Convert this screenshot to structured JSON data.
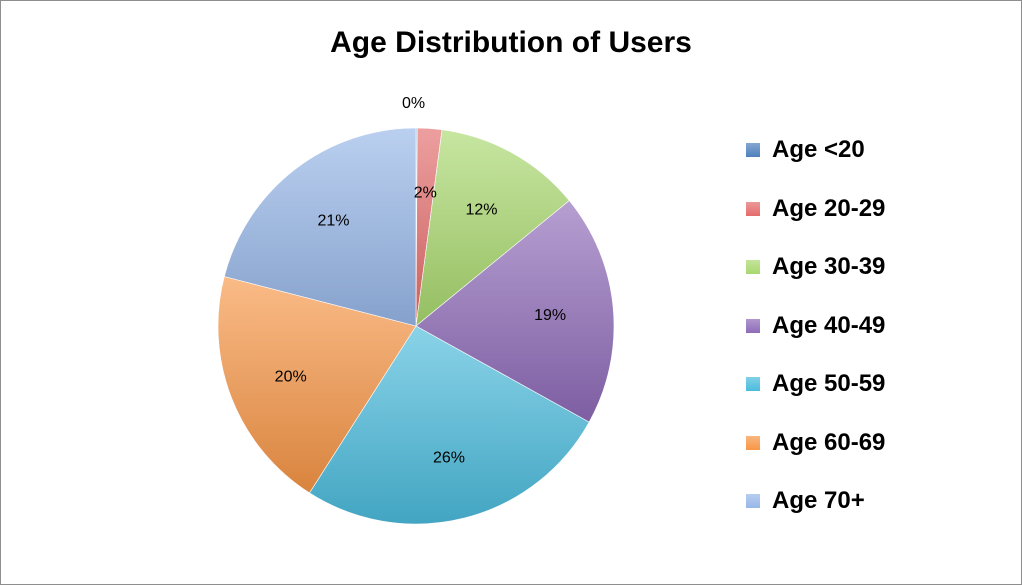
{
  "chart_data": {
    "type": "pie",
    "title": "Age Distribution of Users",
    "categories": [
      "Age <20",
      "Age 20-29",
      "Age 30-39",
      "Age 40-49",
      "Age 50-59",
      "Age 60-69",
      "Age 70+"
    ],
    "values": [
      0.1,
      2,
      12,
      19,
      26,
      20,
      21
    ],
    "data_labels": [
      "0%",
      "2%",
      "12%",
      "19%",
      "26%",
      "20%",
      "21%"
    ],
    "colors": [
      "#4F81BD",
      "#E46C6C",
      "#A9D86E",
      "#8E6BB8",
      "#4BBCDC",
      "#F79646",
      "#97B7E8"
    ],
    "legend_position": "right"
  }
}
